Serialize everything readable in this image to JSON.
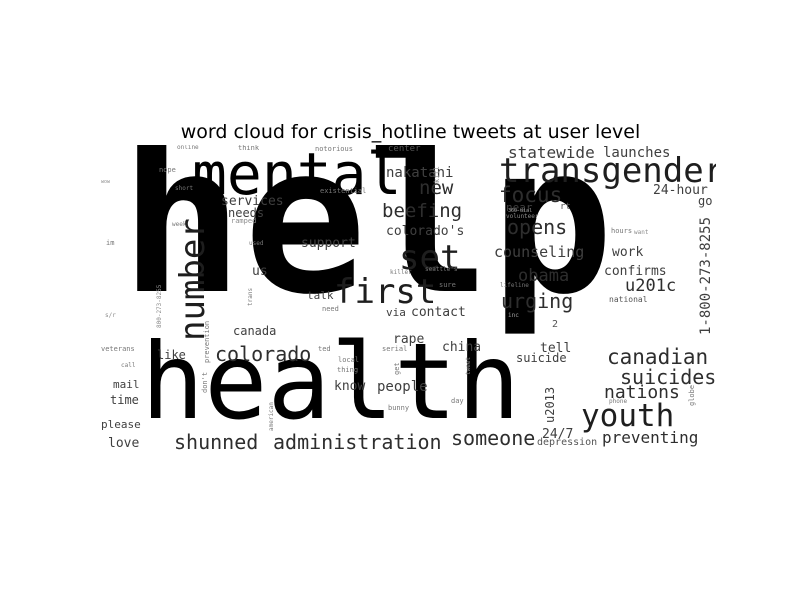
{
  "title": "word cloud for crisis_hotline tweets at user level",
  "colors": {
    "background": "#ffffff",
    "ink": [
      "#000000",
      "#1e1e1e",
      "#2e2e2e",
      "#3f3f3f",
      "#555555",
      "#777777",
      "#8c8c8c",
      "#a0a0a0"
    ]
  },
  "words": [
    "help",
    "health",
    "mental",
    "transgender",
    "number",
    "first",
    "set",
    "youth",
    "shunned",
    "administration",
    "colorado",
    "canadian",
    "suicides",
    "nations",
    "someone",
    "preventing",
    "urging",
    "obama",
    "opens",
    "counseling",
    "focus",
    "beefing",
    "new",
    "nakatani",
    "statewide",
    "launches",
    "24-hour",
    "u201c",
    "confirms",
    "work",
    "support",
    "colorado's",
    "services",
    "needs",
    "canada",
    "contact",
    "rape",
    "china",
    "tell",
    "suicide",
    "people",
    "know",
    "like",
    "mail",
    "time",
    "please",
    "love",
    "us",
    "talk",
    "via",
    "1-800-273-8255",
    "24/7",
    "u2013",
    "depression",
    "go",
    "center",
    "near",
    "rt",
    "think",
    "online",
    "nope",
    "short",
    "week",
    "existential",
    "notorious",
    "im",
    "veterans",
    "call",
    "prevention",
    "don't",
    "used",
    "trans",
    "need",
    "killer",
    "seattle's",
    "sure",
    "lifeline",
    "national",
    "volunteer",
    "want",
    "hours",
    "phone",
    "globe",
    "day",
    "bunny",
    "serial",
    "local",
    "ted",
    "thing",
    "american",
    "get",
    "2",
    "kill",
    "ramped",
    "tweet",
    "s/r",
    "wow",
    "800-273-8255",
    "360-dial",
    "inc"
  ]
}
